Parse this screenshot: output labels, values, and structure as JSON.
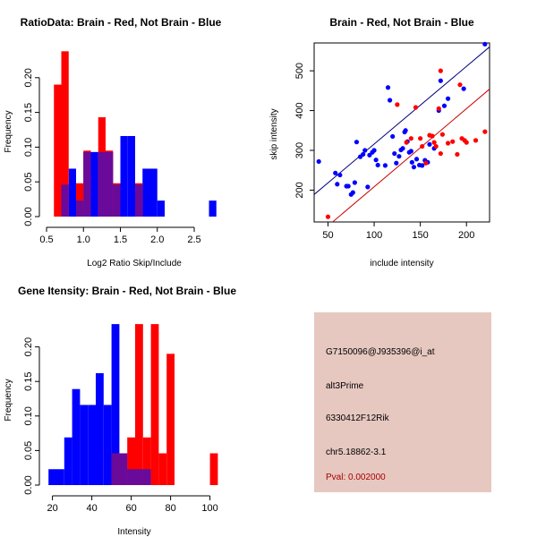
{
  "chart_data": [
    {
      "id": "ratio",
      "type": "bar",
      "title": "RatioData: Brain - Red, Not Brain - Blue",
      "xlabel": "Log2 Ratio Skip/Include",
      "ylabel": "Frequency",
      "xlim": [
        0.5,
        2.9
      ],
      "ylim": [
        0,
        0.25
      ],
      "xticks": [
        0.5,
        1.0,
        1.5,
        2.0,
        2.5
      ],
      "xtick_labels": [
        "0.5",
        "1.0",
        "1.5",
        "2.0",
        "2.5"
      ],
      "yticks": [
        0,
        0.05,
        0.1,
        0.15,
        0.2
      ],
      "ytick_labels": [
        "0.00",
        "0.05",
        "0.10",
        "0.15",
        "0.20"
      ],
      "series": [
        {
          "name": "Not Brain",
          "color": "#0000ff",
          "bins": [
            [
              0.7,
              0.8,
              0.046
            ],
            [
              0.8,
              0.9,
              0.069
            ],
            [
              0.9,
              1.0,
              0.023
            ],
            [
              1.0,
              1.1,
              0.093
            ],
            [
              1.1,
              1.2,
              0.093
            ],
            [
              1.2,
              1.3,
              0.093
            ],
            [
              1.3,
              1.4,
              0.093
            ],
            [
              1.4,
              1.5,
              0.046
            ],
            [
              1.5,
              1.6,
              0.116
            ],
            [
              1.6,
              1.7,
              0.116
            ],
            [
              1.7,
              1.8,
              0.046
            ],
            [
              1.8,
              1.9,
              0.069
            ],
            [
              1.9,
              2.0,
              0.069
            ],
            [
              2.0,
              2.1,
              0.023
            ],
            [
              2.7,
              2.8,
              0.023
            ]
          ]
        },
        {
          "name": "Brain",
          "color": "#ff0000",
          "bins": [
            [
              0.6,
              0.7,
              0.19
            ],
            [
              0.7,
              0.8,
              0.238
            ],
            [
              0.9,
              1.0,
              0.048
            ],
            [
              1.0,
              1.1,
              0.095
            ],
            [
              1.2,
              1.3,
              0.143
            ],
            [
              1.3,
              1.4,
              0.095
            ],
            [
              1.4,
              1.5,
              0.048
            ],
            [
              1.7,
              1.8,
              0.048
            ]
          ]
        }
      ]
    },
    {
      "id": "scatter",
      "type": "scatter",
      "title": "Brain - Red, Not Brain - Blue",
      "xlabel": "include intensity",
      "ylabel": "skip intensity",
      "xlim": [
        35,
        225
      ],
      "ylim": [
        120,
        570
      ],
      "xticks": [
        50,
        100,
        150,
        200
      ],
      "yticks": [
        200,
        300,
        400,
        500
      ],
      "series": [
        {
          "name": "Not Brain",
          "color": "#0000ff",
          "points": [
            [
              40,
              272
            ],
            [
              58,
              243
            ],
            [
              60,
              215
            ],
            [
              63,
              238
            ],
            [
              70,
              210
            ],
            [
              72,
              210
            ],
            [
              75,
              189
            ],
            [
              77,
              194
            ],
            [
              79,
              219
            ],
            [
              81,
              321
            ],
            [
              85,
              284
            ],
            [
              88,
              290
            ],
            [
              90,
              300
            ],
            [
              93,
              208
            ],
            [
              95,
              288
            ],
            [
              98,
              295
            ],
            [
              100,
              300
            ],
            [
              102,
              276
            ],
            [
              104,
              263
            ],
            [
              112,
              262
            ],
            [
              115,
              458
            ],
            [
              117,
              426
            ],
            [
              120,
              335
            ],
            [
              122,
              292
            ],
            [
              124,
              268
            ],
            [
              127,
              285
            ],
            [
              129,
              301
            ],
            [
              131,
              305
            ],
            [
              133,
              346
            ],
            [
              134,
              350
            ],
            [
              136,
              322
            ],
            [
              138,
              295
            ],
            [
              140,
              298
            ],
            [
              141,
              270
            ],
            [
              143,
              258
            ],
            [
              146,
              278
            ],
            [
              149,
              263
            ],
            [
              152,
              262
            ],
            [
              155,
              275
            ],
            [
              158,
              270
            ],
            [
              160,
              315
            ],
            [
              165,
              305
            ],
            [
              170,
              400
            ],
            [
              172,
              475
            ],
            [
              176,
              412
            ],
            [
              180,
              430
            ],
            [
              197,
              455
            ],
            [
              220,
              567
            ]
          ]
        },
        {
          "name": "Brain",
          "color": "#ff0000",
          "points": [
            [
              50,
              133
            ],
            [
              125,
              415
            ],
            [
              135,
              320
            ],
            [
              140,
              330
            ],
            [
              145,
              408
            ],
            [
              150,
              330
            ],
            [
              152,
              310
            ],
            [
              156,
              268
            ],
            [
              160,
              338
            ],
            [
              163,
              336
            ],
            [
              165,
              320
            ],
            [
              167,
              310
            ],
            [
              170,
              405
            ],
            [
              172,
              292
            ],
            [
              174,
              340
            ],
            [
              180,
              318
            ],
            [
              185,
              322
            ],
            [
              190,
              290
            ],
            [
              193,
              465
            ],
            [
              195,
              330
            ],
            [
              198,
              325
            ],
            [
              200,
              320
            ],
            [
              210,
              325
            ],
            [
              220,
              347
            ],
            [
              172,
              500
            ]
          ]
        }
      ],
      "lines": [
        {
          "name": "blue-fit",
          "color": "#000080",
          "from": [
            35,
            189
          ],
          "to": [
            225,
            560
          ]
        },
        {
          "name": "red-fit",
          "color": "#cc0000",
          "from": [
            55,
            120
          ],
          "to": [
            225,
            454
          ]
        }
      ]
    },
    {
      "id": "intensity",
      "type": "bar",
      "title": "Gene Itensity: Brain - Red, Not Brain - Blue",
      "xlabel": "Intensity",
      "ylabel": "Frequency",
      "xlim": [
        17,
        107
      ],
      "ylim": [
        0,
        0.25
      ],
      "xticks": [
        20,
        40,
        60,
        80,
        100
      ],
      "xtick_labels": [
        "20",
        "40",
        "60",
        "80",
        "100"
      ],
      "yticks": [
        0,
        0.05,
        0.1,
        0.15,
        0.2
      ],
      "ytick_labels": [
        "0.00",
        "0.05",
        "0.10",
        "0.15",
        "0.20"
      ],
      "series": [
        {
          "name": "Not Brain",
          "color": "#0000ff",
          "bins": [
            [
              18,
              22,
              0.023
            ],
            [
              22,
              26,
              0.023
            ],
            [
              26,
              30,
              0.069
            ],
            [
              30,
              34,
              0.139
            ],
            [
              34,
              38,
              0.116
            ],
            [
              38,
              42,
              0.116
            ],
            [
              42,
              46,
              0.162
            ],
            [
              46,
              50,
              0.116
            ],
            [
              50,
              54,
              0.233
            ],
            [
              54,
              58,
              0.046
            ],
            [
              58,
              62,
              0.023
            ],
            [
              62,
              66,
              0.023
            ],
            [
              66,
              70,
              0.023
            ]
          ]
        },
        {
          "name": "Brain",
          "color": "#ff0000",
          "bins": [
            [
              50,
              54,
              0.046
            ],
            [
              54,
              58,
              0.046
            ],
            [
              58,
              62,
              0.069
            ],
            [
              62,
              66,
              0.233
            ],
            [
              66,
              70,
              0.069
            ],
            [
              70,
              74,
              0.233
            ],
            [
              74,
              78,
              0.046
            ],
            [
              78,
              82,
              0.19
            ],
            [
              100,
              104,
              0.046
            ]
          ]
        }
      ]
    }
  ],
  "info_panel": {
    "probe_id": "G7150096@J935396@i_at",
    "event_type": "alt3Prime",
    "gene": "6330412F12Rik",
    "location": "chr5.18862-3.1",
    "pval": "Pval: 0.002000",
    "bg_color": "#e6c8c0",
    "pval_color": "#aa0000"
  }
}
